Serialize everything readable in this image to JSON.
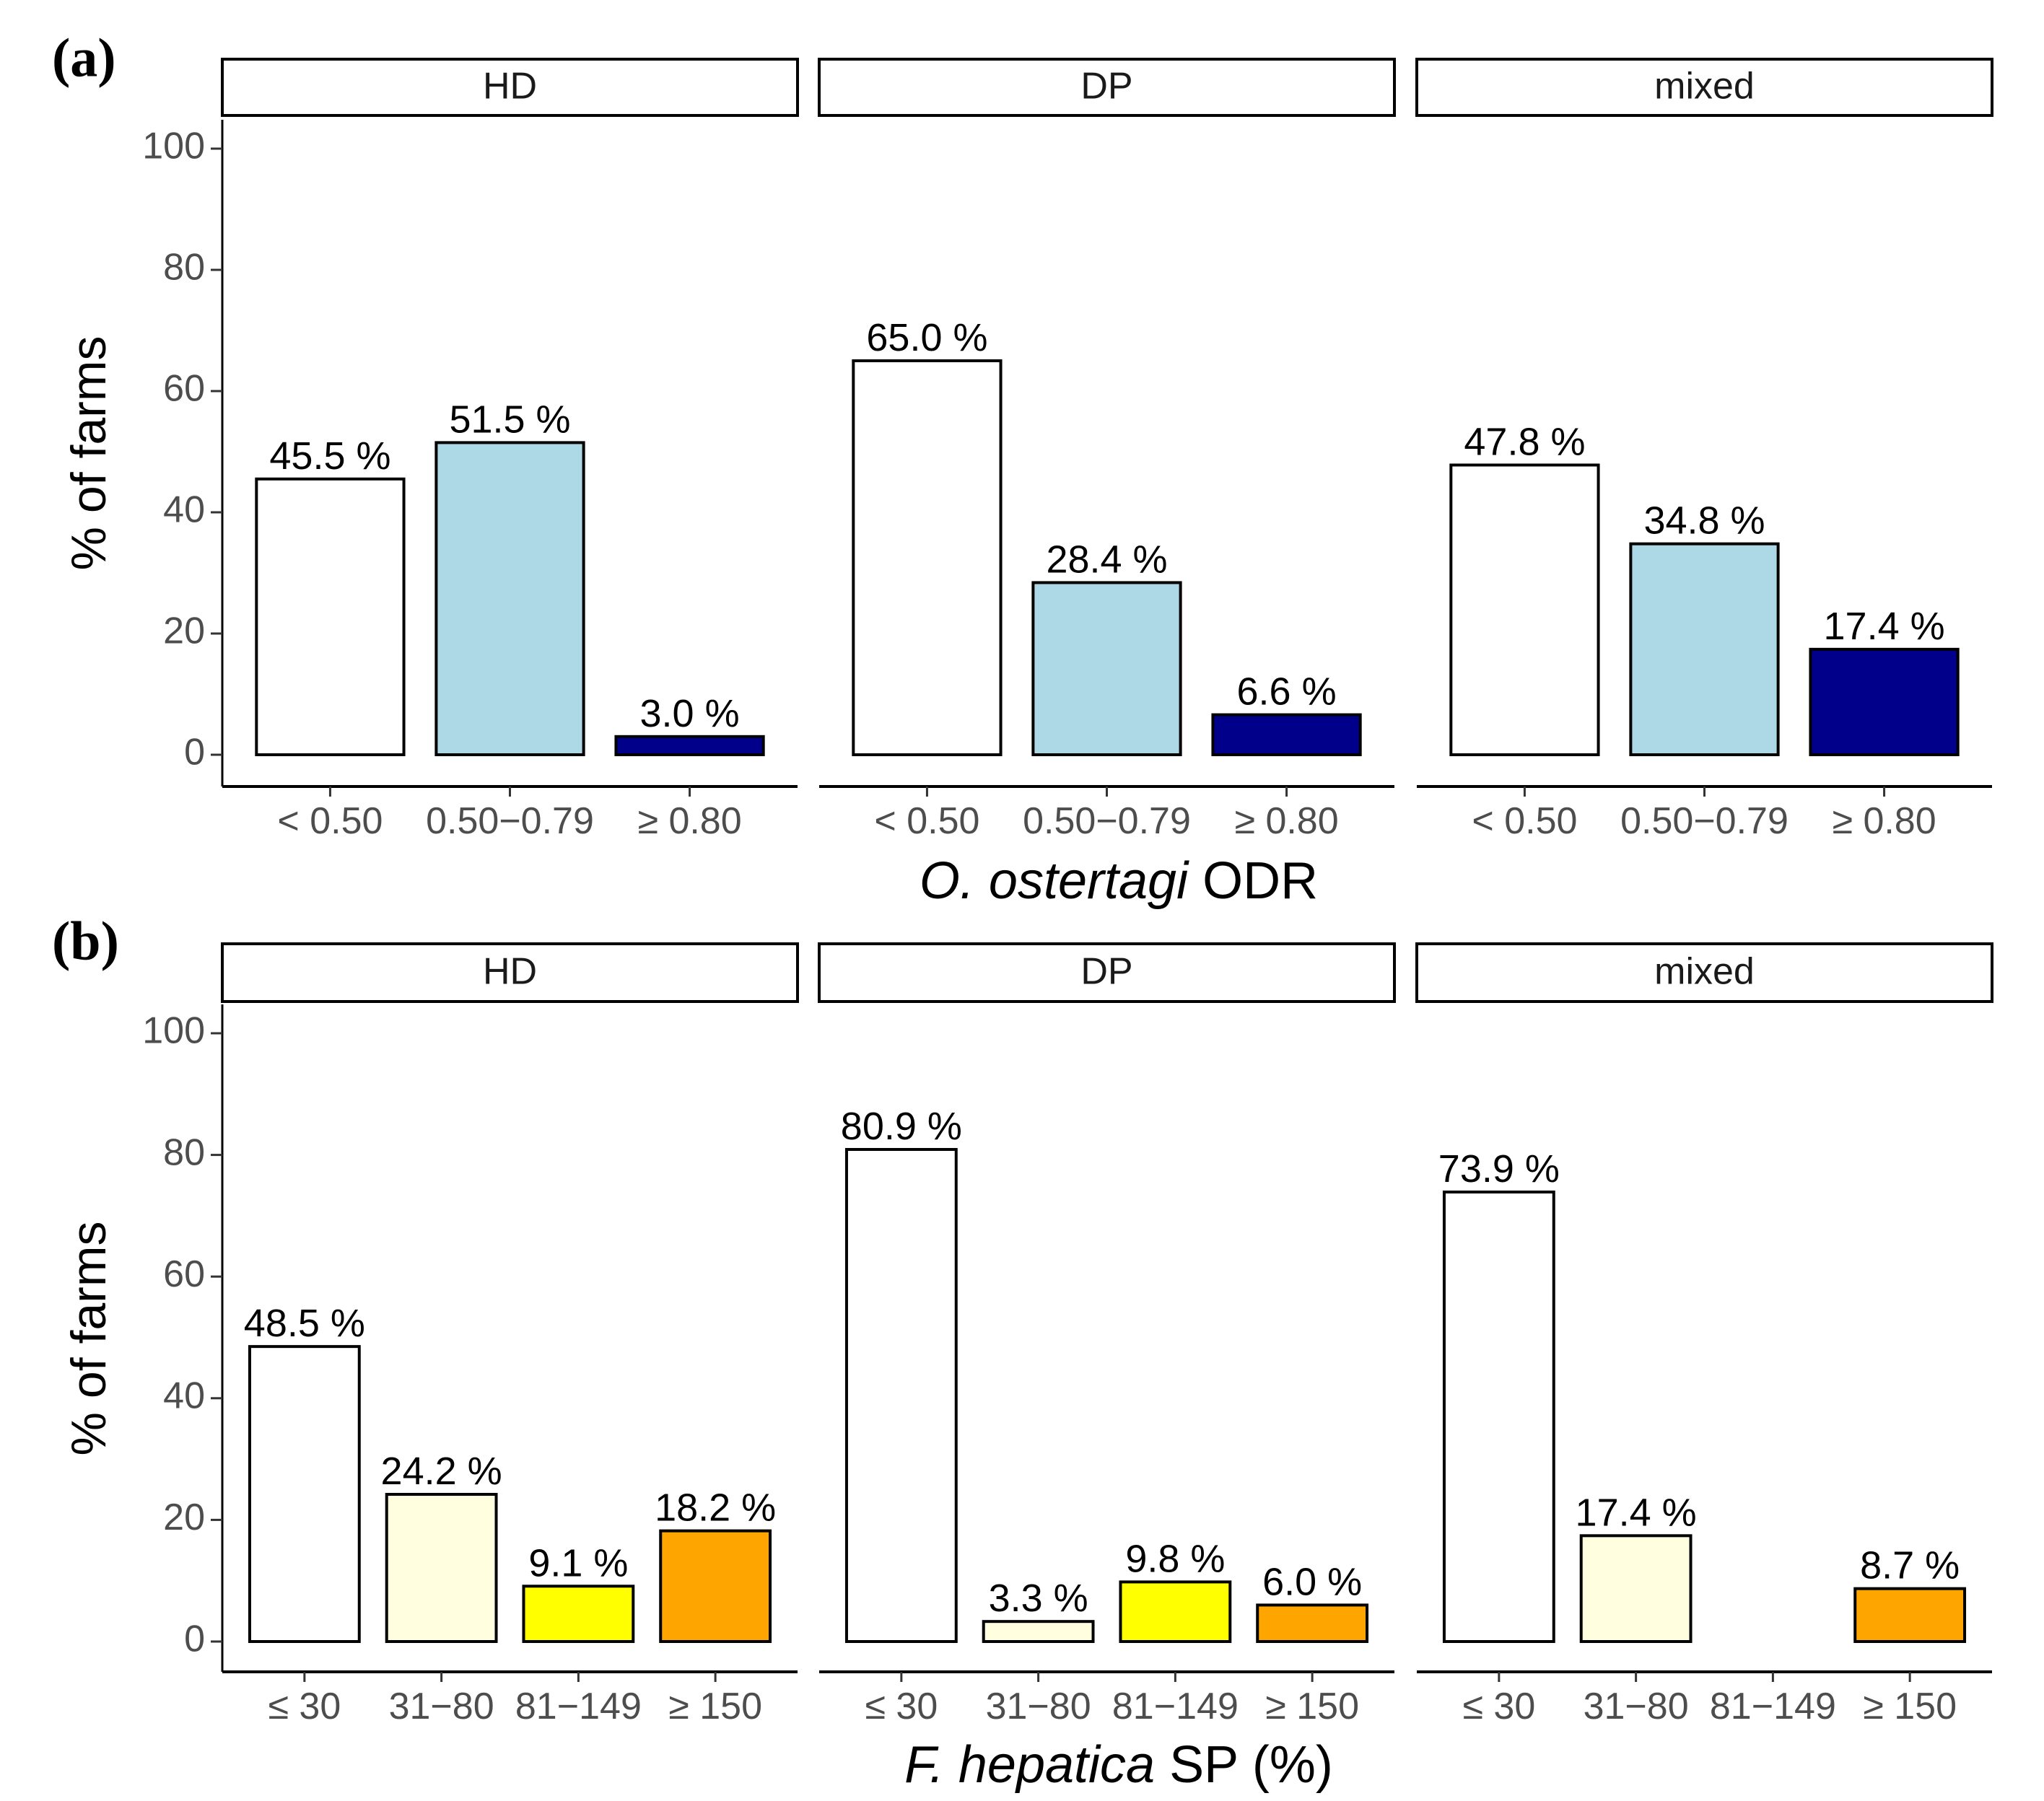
{
  "chart_data": [
    {
      "type": "bar",
      "panel_label": "(a)",
      "xlabel_italic": "O. ostertagi",
      "xlabel_rest": "ODR",
      "ylabel": "% of farms",
      "ylim": [
        0,
        100
      ],
      "yticks": [
        "0",
        "20",
        "40",
        "60",
        "80",
        "100"
      ],
      "categories": [
        "< 0.50",
        "0.50−0.79",
        "≥ 0.80"
      ],
      "colors": [
        "#ffffff",
        "#add8e6",
        "#00008b"
      ],
      "facets": [
        {
          "name": "HD",
          "values": [
            45.5,
            51.5,
            3.0
          ],
          "labels": [
            "45.5 %",
            "51.5 %",
            "3.0 %"
          ]
        },
        {
          "name": "DP",
          "values": [
            65.0,
            28.4,
            6.6
          ],
          "labels": [
            "65.0 %",
            "28.4 %",
            "6.6 %"
          ]
        },
        {
          "name": "mixed",
          "values": [
            47.8,
            34.8,
            17.4
          ],
          "labels": [
            "47.8 %",
            "34.8 %",
            "17.4 %"
          ]
        }
      ],
      "grid": false,
      "legend": "none"
    },
    {
      "type": "bar",
      "panel_label": "(b)",
      "xlabel_italic": "F. hepatica",
      "xlabel_rest": "SP (%)",
      "ylabel": "% of farms",
      "ylim": [
        0,
        100
      ],
      "yticks": [
        "0",
        "20",
        "40",
        "60",
        "80",
        "100"
      ],
      "categories": [
        "≤ 30",
        "31−80",
        "81−149",
        "≥ 150"
      ],
      "colors": [
        "#ffffff",
        "#ffffe0",
        "#ffff00",
        "#ffa500"
      ],
      "facets": [
        {
          "name": "HD",
          "values": [
            48.5,
            24.2,
            9.1,
            18.2
          ],
          "labels": [
            "48.5 %",
            "24.2 %",
            "9.1 %",
            "18.2 %"
          ]
        },
        {
          "name": "DP",
          "values": [
            80.9,
            3.3,
            9.8,
            6.0
          ],
          "labels": [
            "80.9 %",
            "3.3 %",
            "9.8 %",
            "6.0 %"
          ]
        },
        {
          "name": "mixed",
          "values": [
            73.9,
            17.4,
            0,
            8.7
          ],
          "labels": [
            "73.9 %",
            "17.4 %",
            "",
            "8.7 %"
          ]
        }
      ],
      "grid": false,
      "legend": "none"
    }
  ]
}
